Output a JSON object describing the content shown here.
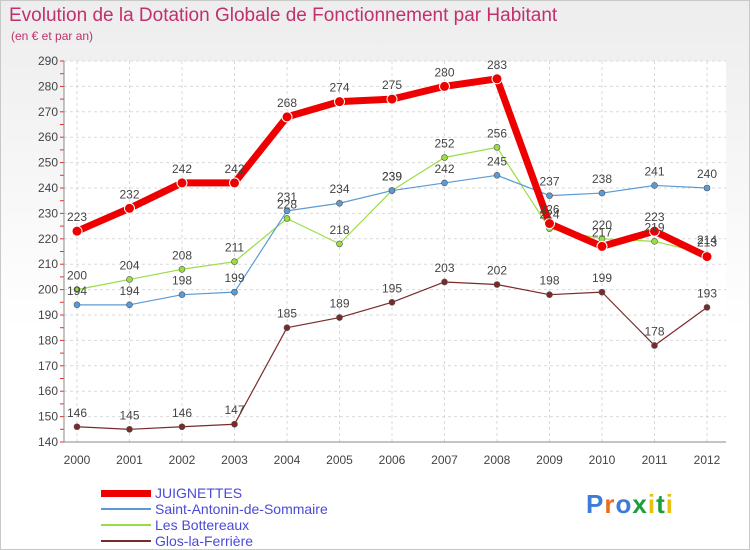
{
  "header": {
    "title": "Evolution de la Dotation Globale de Fonctionnement par Habitant",
    "subtitle": "(en € et par an)"
  },
  "chart_data": {
    "type": "line",
    "title": "Evolution de la Dotation Globale de Fonctionnement par Habitant",
    "subtitle": "(en € et par an)",
    "x": [
      "2000",
      "2001",
      "2002",
      "2003",
      "2004",
      "2005",
      "2006",
      "2007",
      "2008",
      "2009",
      "2010",
      "2011",
      "2012"
    ],
    "ylim": [
      140,
      290
    ],
    "yticks": [
      140,
      150,
      160,
      170,
      180,
      190,
      200,
      210,
      220,
      230,
      240,
      250,
      260,
      270,
      280,
      290
    ],
    "grid": true,
    "legend_position": "bottom-left",
    "series": [
      {
        "name": "JUIGNETTES",
        "color": "#ee0000",
        "values": [
          223,
          232,
          242,
          242,
          268,
          274,
          275,
          280,
          283,
          226,
          217,
          223,
          213
        ]
      },
      {
        "name": "Saint-Antonin-de-Sommaire",
        "color": "#5b9bd5",
        "values": [
          194,
          194,
          198,
          199,
          231,
          234,
          239,
          242,
          245,
          237,
          238,
          241,
          240
        ]
      },
      {
        "name": "Les Bottereaux",
        "color": "#99dd44",
        "values": [
          200,
          204,
          208,
          211,
          228,
          218,
          239,
          252,
          256,
          224,
          220,
          219,
          214
        ]
      },
      {
        "name": "Glos-la-Ferrière",
        "color": "#7a2a2a",
        "values": [
          146,
          145,
          146,
          147,
          185,
          189,
          195,
          203,
          202,
          198,
          199,
          178,
          193
        ]
      }
    ]
  },
  "logo": {
    "text": "Proxiti",
    "colors": [
      "#3d7dd8",
      "#ef6c1c",
      "#3d7dd8",
      "#1e9e3c",
      "#e8c010",
      "#1e9e3c",
      "#e8c010"
    ]
  }
}
